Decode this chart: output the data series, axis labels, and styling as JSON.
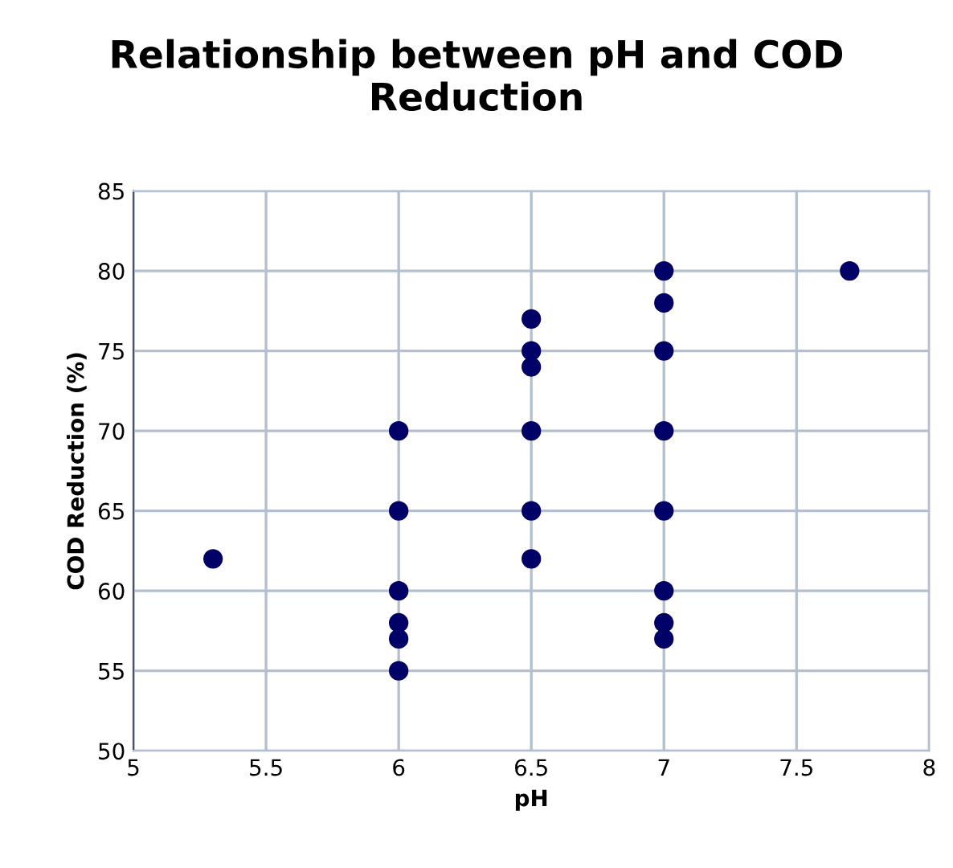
{
  "chart_data": {
    "type": "scatter",
    "title": "Relationship between pH and COD Reduction",
    "xlabel": "pH",
    "ylabel": "COD Reduction (%)",
    "series": [
      {
        "color": "#000066",
        "x": [
          5.3,
          6,
          6,
          6,
          6,
          6,
          6,
          6.5,
          6.5,
          6.5,
          6.5,
          6.5,
          6.5,
          7,
          7,
          7,
          7,
          7,
          7,
          7,
          7,
          7.7
        ],
        "values": [
          62,
          70,
          65,
          60,
          58,
          57,
          55,
          77,
          75,
          74,
          70,
          65,
          62,
          80,
          78,
          75,
          70,
          65,
          60,
          58,
          57,
          80
        ]
      }
    ],
    "xlim": [
      5,
      8
    ],
    "xticks": [
      5,
      5.5,
      6,
      6.5,
      7,
      7.5,
      8
    ],
    "ylim": [
      50,
      85
    ],
    "yticks": [
      50,
      55,
      60,
      65,
      70,
      75,
      80,
      85
    ],
    "grid": true,
    "marker": "circle"
  }
}
